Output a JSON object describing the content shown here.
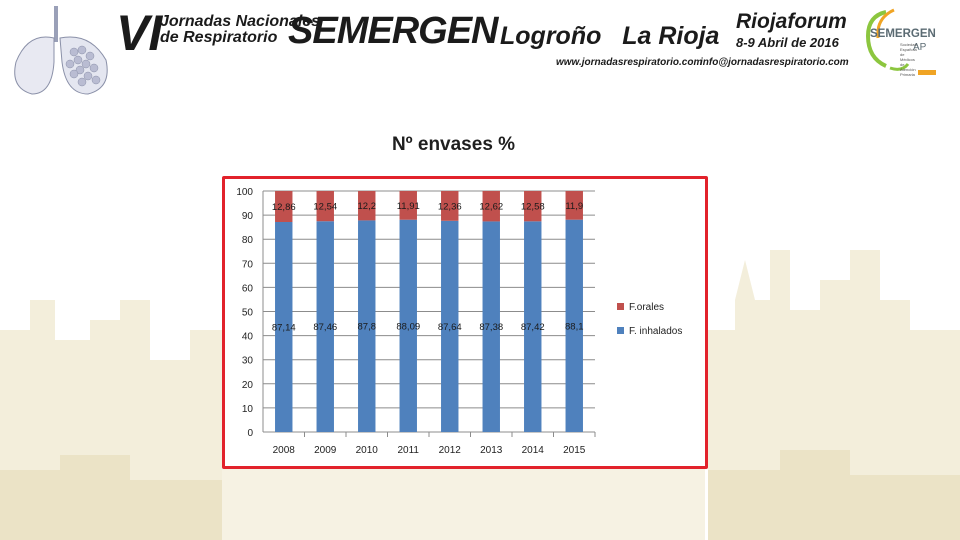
{
  "header": {
    "edition": "VI",
    "event_line1": "Jornadas Nacionales",
    "event_line2": "de Respiratorio",
    "brand": "SEMERGEN",
    "city": "Logroño   La Rioja",
    "website": "www.jornadasrespiratorio.com",
    "venue": "Riojaforum",
    "dates": "8-9 Abril de 2016",
    "email": "info@jornadasrespiratorio.com",
    "logo": {
      "name": "SEMERGEN",
      "suffix": "AP",
      "subtitle": "Sociedad Española de Médicos de Atención Primaria"
    }
  },
  "colors": {
    "frame": "#e2222b",
    "series_inhalados": "#4f81bd",
    "series_orales": "#c0504d"
  },
  "icons": {
    "header_left": "lungs-illustration",
    "logo": "semergen-logo"
  },
  "chart_data": {
    "type": "bar",
    "stacked": true,
    "title": "Nº envases %",
    "categories": [
      "2008",
      "2009",
      "2010",
      "2011",
      "2012",
      "2013",
      "2014",
      "2015"
    ],
    "series": [
      {
        "name": "F. inhalados",
        "values": [
          87.14,
          87.46,
          87.8,
          88.09,
          87.64,
          87.38,
          87.42,
          88.1
        ],
        "labels": [
          "87,14",
          "87,46",
          "87,8",
          "88,09",
          "87,64",
          "87,38",
          "87,42",
          "88,1"
        ],
        "color": "#4f81bd"
      },
      {
        "name": "F.orales",
        "values": [
          12.86,
          12.54,
          12.2,
          11.91,
          12.36,
          12.62,
          12.58,
          11.9
        ],
        "labels": [
          "12,86",
          "12,54",
          "12,2",
          "11,91",
          "12,36",
          "12,62",
          "12,58",
          "11,9"
        ],
        "color": "#c0504d"
      }
    ],
    "ylim": [
      0,
      100
    ],
    "yticks": [
      0,
      10,
      20,
      30,
      40,
      50,
      60,
      70,
      80,
      90,
      100
    ],
    "grid": true,
    "legend": "right"
  }
}
